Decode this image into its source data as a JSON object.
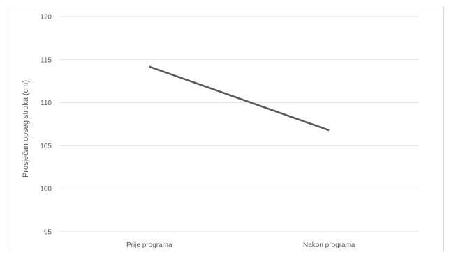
{
  "chart_data": {
    "type": "line",
    "title": "",
    "xlabel": "",
    "ylabel": "Prosječan opseg struka (cm)",
    "categories": [
      "Prije programa",
      "Nakon programa"
    ],
    "series": [
      {
        "values": [
          114.2,
          106.8
        ],
        "color": "#595959"
      }
    ],
    "ylim": [
      95,
      120
    ],
    "yticks": [
      95,
      100,
      105,
      110,
      115,
      120
    ],
    "grid": true,
    "legend": "none"
  }
}
